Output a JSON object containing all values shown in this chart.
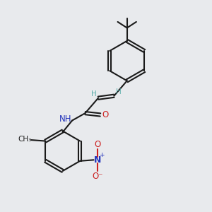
{
  "bg_color": "#e8eaed",
  "bond_color": "#1a1a1a",
  "bond_width": 1.5,
  "teal": "#5aadaa",
  "blue": "#2233bb",
  "red": "#cc2222",
  "figsize": [
    3.0,
    3.0
  ],
  "dpi": 100,
  "xlim": [
    0,
    10
  ],
  "ylim": [
    0,
    10
  ]
}
